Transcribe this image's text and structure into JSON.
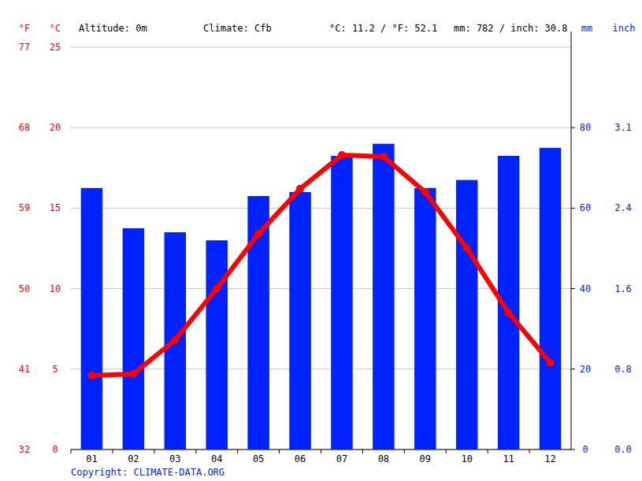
{
  "chart_data": {
    "type": "combo",
    "altitude": "Altitude: 0m",
    "climate": "Climate: Cfb",
    "temperature_summary": "°C: 11.2 / °F: 52.1",
    "precipitation_summary": "mm: 782 / inch: 30.8",
    "copyright": "Copyright: CLIMATE-DATA.ORG",
    "y_label": "°C",
    "y3_label": "°F",
    "y2_label": "mm",
    "y4_label": "inch",
    "categories": [
      "01",
      "02",
      "03",
      "04",
      "05",
      "06",
      "07",
      "08",
      "09",
      "10",
      "11",
      "12"
    ],
    "ylim": [
      0,
      25
    ],
    "yticks": [
      0,
      5,
      10,
      15,
      20,
      25
    ],
    "y3lim": [
      32,
      77
    ],
    "y3ticks": [
      32,
      41,
      50,
      59,
      68,
      77
    ],
    "y2lim": [
      0,
      100
    ],
    "y2ticks": [
      0,
      20,
      40,
      60,
      80
    ],
    "y4lim": [
      0,
      3.937
    ],
    "y4ticks": [
      {
        "value": 0,
        "label": "0.0"
      },
      {
        "value": 0.787,
        "label": "0.8"
      },
      {
        "value": 1.575,
        "label": "1.6"
      },
      {
        "value": 2.362,
        "label": "2.4"
      },
      {
        "value": 3.149,
        "label": "3.1"
      }
    ],
    "grid": true,
    "series": [
      {
        "type": "bar",
        "axis": "y2",
        "color": "#0022ff",
        "values": [
          65,
          55,
          54,
          52,
          63,
          64,
          73,
          76,
          65,
          67,
          73,
          75
        ]
      },
      {
        "type": "line",
        "color": "#ff0000",
        "marker": "circle",
        "values": [
          4.6,
          4.7,
          6.8,
          10.0,
          13.4,
          16.2,
          18.3,
          18.2,
          16.0,
          12.5,
          8.5,
          5.4
        ]
      }
    ]
  }
}
